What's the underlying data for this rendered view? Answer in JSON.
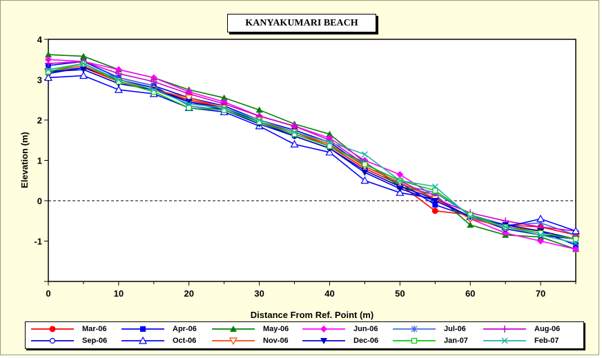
{
  "chart_data": {
    "type": "line",
    "title": "KANYAKUMARI BEACH",
    "xlabel": "Distance From Ref. Point (m)",
    "ylabel": "Elevation (m)",
    "xlim": [
      0,
      75
    ],
    "ylim": [
      -2,
      4
    ],
    "xticks": [
      0,
      10,
      20,
      30,
      40,
      50,
      60,
      70
    ],
    "yticks": [
      -1,
      0,
      1,
      2,
      3,
      4
    ],
    "reference_line": {
      "y": 0,
      "style": "dashed"
    },
    "legend_position": "bottom",
    "x": [
      0,
      5,
      10,
      15,
      20,
      25,
      30,
      35,
      40,
      45,
      50,
      55,
      60,
      65,
      70,
      75
    ],
    "series": [
      {
        "name": "Mar-06",
        "color": "#ff0000",
        "marker": "circle-filled",
        "values": [
          3.2,
          3.3,
          2.95,
          2.75,
          2.5,
          2.3,
          1.95,
          1.7,
          1.35,
          0.8,
          0.4,
          -0.25,
          -0.35,
          -0.6,
          -0.65,
          -0.85
        ]
      },
      {
        "name": "Apr-06",
        "color": "#0000ff",
        "marker": "square-filled",
        "values": [
          3.35,
          3.45,
          3.05,
          2.85,
          2.55,
          2.35,
          2.0,
          1.75,
          1.45,
          0.85,
          0.45,
          -0.1,
          -0.4,
          -0.6,
          -0.75,
          -1.1
        ]
      },
      {
        "name": "May-06",
        "color": "#008000",
        "marker": "triangle-filled",
        "values": [
          3.62,
          3.58,
          3.25,
          3.05,
          2.75,
          2.55,
          2.25,
          1.9,
          1.65,
          0.95,
          0.35,
          0.15,
          -0.6,
          -0.85,
          -0.9,
          -1.2
        ]
      },
      {
        "name": "Jun-06",
        "color": "#ff00ff",
        "marker": "diamond-filled",
        "values": [
          3.5,
          3.45,
          3.25,
          3.05,
          2.7,
          2.45,
          2.1,
          1.85,
          1.55,
          1.0,
          0.65,
          0.1,
          -0.45,
          -0.8,
          -1.0,
          -1.2
        ]
      },
      {
        "name": "Jul-06",
        "color": "#4169e1",
        "marker": "asterisk",
        "values": [
          3.2,
          3.3,
          3.05,
          2.85,
          2.35,
          2.25,
          1.95,
          1.65,
          1.35,
          0.95,
          0.4,
          0.2,
          -0.35,
          -0.6,
          -0.55,
          -0.85
        ]
      },
      {
        "name": "Aug-06",
        "color": "#cc00cc",
        "marker": "plus",
        "values": [
          3.4,
          3.45,
          3.15,
          2.95,
          2.65,
          2.4,
          2.1,
          1.85,
          1.5,
          0.9,
          0.5,
          0.05,
          -0.3,
          -0.5,
          -0.65,
          -0.75
        ]
      },
      {
        "name": "Sep-06",
        "color": "#0000cd",
        "marker": "circle-open",
        "values": [
          3.15,
          3.3,
          3.0,
          2.8,
          2.45,
          2.3,
          1.95,
          1.6,
          1.3,
          0.75,
          0.35,
          0.05,
          -0.4,
          -0.7,
          -0.85,
          -0.95
        ]
      },
      {
        "name": "Oct-06",
        "color": "#0000ff",
        "marker": "triangle-open",
        "values": [
          3.05,
          3.1,
          2.75,
          2.65,
          2.3,
          2.2,
          1.85,
          1.4,
          1.2,
          0.5,
          0.2,
          0.05,
          -0.4,
          -0.65,
          -0.45,
          -0.75
        ]
      },
      {
        "name": "Nov-06",
        "color": "#ff4500",
        "marker": "triangle-down-open",
        "values": [
          3.2,
          3.35,
          2.95,
          2.75,
          2.55,
          2.3,
          2.0,
          1.7,
          1.4,
          0.85,
          0.45,
          0.05,
          -0.45,
          -0.65,
          -0.75,
          -0.95
        ]
      },
      {
        "name": "Dec-06",
        "color": "#0000cd",
        "marker": "triangle-down-filled",
        "values": [
          3.2,
          3.25,
          2.9,
          2.75,
          2.45,
          2.25,
          1.9,
          1.6,
          1.3,
          0.7,
          0.3,
          0.0,
          -0.4,
          -0.6,
          -0.75,
          -0.95
        ]
      },
      {
        "name": "Jan-07",
        "color": "#00cc00",
        "marker": "square-open",
        "values": [
          3.2,
          3.4,
          2.95,
          2.7,
          2.3,
          2.25,
          1.95,
          1.65,
          1.35,
          0.9,
          0.5,
          0.25,
          -0.35,
          -0.65,
          -0.8,
          -0.95
        ]
      },
      {
        "name": "Feb-07",
        "color": "#20b2aa",
        "marker": "x",
        "values": [
          3.25,
          3.4,
          3.0,
          2.75,
          2.4,
          2.3,
          2.0,
          1.7,
          1.45,
          1.15,
          0.5,
          0.35,
          -0.4,
          -0.65,
          -0.85,
          -1.05
        ]
      }
    ]
  }
}
